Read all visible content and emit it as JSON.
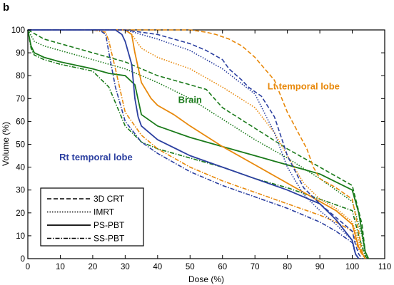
{
  "panel_label": "b",
  "chart_data": {
    "type": "line",
    "xlabel": "Dose (%)",
    "ylabel": "Volume (%)",
    "xlim": [
      0,
      110
    ],
    "ylim": [
      0,
      100
    ],
    "xticks": [
      0,
      10,
      20,
      30,
      40,
      50,
      60,
      70,
      80,
      90,
      100,
      110
    ],
    "yticks": [
      0,
      10,
      20,
      30,
      40,
      50,
      60,
      70,
      80,
      90,
      100
    ],
    "grid": false,
    "colors": {
      "Brain": "#1a7a1a",
      "Lt temporal lobe": "#e8890c",
      "Rt temporal lobe": "#2b3fa0"
    },
    "annotations": [
      {
        "text": "Lt temporal lobe",
        "structure": "Lt temporal lobe",
        "x": 85,
        "y": 74
      },
      {
        "text": "Brain",
        "structure": "Brain",
        "x": 50,
        "y": 68
      },
      {
        "text": "Rt temporal lobe",
        "structure": "Rt temporal lobe",
        "x": 21,
        "y": 43
      }
    ],
    "legend": {
      "position": "lower-left",
      "entries": [
        {
          "label": "3D CRT",
          "style": "dashed"
        },
        {
          "label": "IMRT",
          "style": "dotted"
        },
        {
          "label": "PS-PBT",
          "style": "solid"
        },
        {
          "label": "SS-PBT",
          "style": "dash-dot"
        }
      ]
    },
    "series": [
      {
        "structure": "Brain",
        "technique": "3D CRT",
        "style": "dashed",
        "x": [
          0,
          5,
          10,
          20,
          30,
          40,
          50,
          55,
          60,
          70,
          80,
          90,
          100,
          103,
          104,
          105
        ],
        "y": [
          100,
          96,
          94,
          90,
          86,
          80,
          76,
          74,
          66,
          57,
          48,
          40,
          32,
          15,
          3,
          0
        ]
      },
      {
        "structure": "Brain",
        "technique": "IMRT",
        "style": "dotted",
        "x": [
          0,
          2,
          5,
          10,
          20,
          25,
          30,
          40,
          50,
          60,
          70,
          80,
          90,
          100,
          103,
          104,
          105
        ],
        "y": [
          100,
          95,
          93,
          91,
          87,
          85,
          83,
          77,
          70,
          61,
          52,
          44,
          35,
          25,
          10,
          2,
          0
        ]
      },
      {
        "structure": "Brain",
        "technique": "PS-PBT",
        "style": "solid",
        "x": [
          0,
          1,
          2,
          5,
          10,
          20,
          25,
          30,
          33,
          35,
          40,
          50,
          60,
          70,
          80,
          90,
          100,
          102,
          104,
          105
        ],
        "y": [
          100,
          93,
          90,
          88,
          86,
          83,
          81,
          80,
          76,
          63,
          58,
          53,
          49,
          45,
          41,
          37,
          30,
          20,
          3,
          0
        ]
      },
      {
        "structure": "Brain",
        "technique": "SS-PBT",
        "style": "dash-dot",
        "x": [
          0,
          1,
          2,
          5,
          10,
          20,
          25,
          30,
          35,
          40,
          50,
          60,
          70,
          80,
          90,
          100,
          102,
          104,
          105
        ],
        "y": [
          100,
          92,
          89,
          87,
          85,
          82,
          75,
          58,
          51,
          48,
          44,
          40,
          35,
          31,
          26,
          21,
          10,
          1,
          0
        ]
      },
      {
        "structure": "Lt temporal lobe",
        "technique": "3D CRT",
        "style": "dashed",
        "x": [
          0,
          20,
          30,
          40,
          50,
          55,
          58,
          62,
          66,
          70,
          76,
          80,
          86,
          88,
          90,
          95,
          100,
          102,
          103,
          104
        ],
        "y": [
          100,
          100,
          100,
          100,
          100,
          99,
          98,
          96,
          93,
          88,
          78,
          64,
          48,
          40,
          35,
          31,
          26,
          12,
          3,
          0
        ]
      },
      {
        "structure": "Lt temporal lobe",
        "technique": "IMRT",
        "style": "dotted",
        "x": [
          0,
          20,
          30,
          32,
          35,
          40,
          50,
          60,
          70,
          76,
          80,
          85,
          90,
          95,
          100,
          102,
          103,
          104
        ],
        "y": [
          100,
          100,
          100,
          98,
          92,
          88,
          83,
          75,
          66,
          55,
          45,
          33,
          26,
          22,
          16,
          8,
          2,
          0
        ]
      },
      {
        "structure": "Lt temporal lobe",
        "technique": "PS-PBT",
        "style": "solid",
        "x": [
          0,
          20,
          30,
          32,
          33,
          35,
          38,
          40,
          45,
          50,
          60,
          70,
          80,
          90,
          95,
          100,
          102,
          104
        ],
        "y": [
          100,
          100,
          100,
          98,
          90,
          77,
          70,
          67,
          63,
          58,
          49,
          41,
          33,
          25,
          21,
          15,
          5,
          0
        ]
      },
      {
        "structure": "Lt temporal lobe",
        "technique": "SS-PBT",
        "style": "dash-dot",
        "x": [
          0,
          20,
          24,
          25,
          27,
          30,
          35,
          40,
          50,
          60,
          70,
          80,
          90,
          95,
          100,
          102,
          104
        ],
        "y": [
          100,
          100,
          99,
          95,
          83,
          64,
          54,
          48,
          40,
          34,
          29,
          24,
          19,
          16,
          12,
          4,
          0
        ]
      },
      {
        "structure": "Rt temporal lobe",
        "technique": "3D CRT",
        "style": "dashed",
        "x": [
          0,
          30,
          40,
          50,
          55,
          60,
          62,
          66,
          68,
          72,
          76,
          80,
          85,
          90,
          95,
          100,
          101,
          102,
          103
        ],
        "y": [
          100,
          100,
          98,
          94,
          91,
          87,
          83,
          78,
          75,
          71,
          62,
          45,
          31,
          24,
          18,
          12,
          6,
          2,
          0
        ]
      },
      {
        "structure": "Rt temporal lobe",
        "technique": "IMRT",
        "style": "dotted",
        "x": [
          0,
          30,
          40,
          50,
          60,
          70,
          76,
          80,
          85,
          90,
          95,
          100,
          101,
          102
        ],
        "y": [
          100,
          100,
          96,
          91,
          83,
          72,
          55,
          40,
          28,
          21,
          15,
          8,
          2,
          0
        ]
      },
      {
        "structure": "Rt temporal lobe",
        "technique": "PS-PBT",
        "style": "solid",
        "x": [
          0,
          27,
          29,
          30,
          32,
          33,
          34,
          35,
          40,
          50,
          60,
          70,
          80,
          90,
          95,
          100,
          101,
          102
        ],
        "y": [
          100,
          100,
          98,
          95,
          85,
          70,
          62,
          58,
          52,
          45,
          40,
          35,
          30,
          24,
          17,
          8,
          2,
          0
        ]
      },
      {
        "structure": "Rt temporal lobe",
        "technique": "SS-PBT",
        "style": "dash-dot",
        "x": [
          0,
          22,
          24,
          25,
          27,
          30,
          35,
          40,
          50,
          60,
          70,
          80,
          90,
          95,
          100,
          101,
          102
        ],
        "y": [
          100,
          100,
          98,
          90,
          75,
          60,
          51,
          46,
          38,
          32,
          27,
          22,
          16,
          12,
          7,
          2,
          0
        ]
      }
    ]
  }
}
